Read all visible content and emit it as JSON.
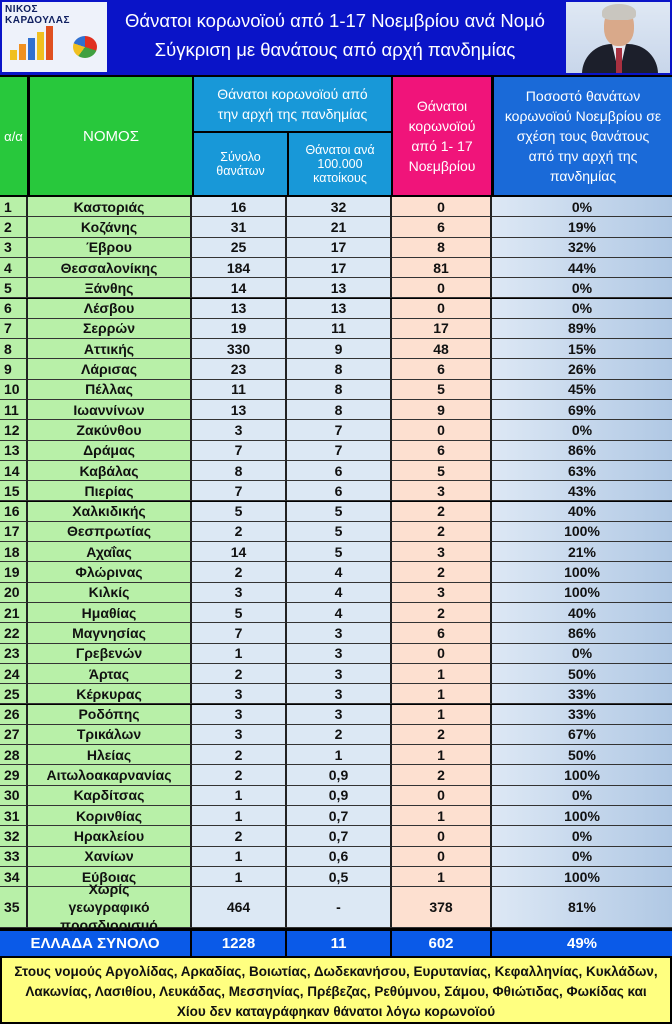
{
  "header": {
    "logo_text": "ΝΙΚΟΣ ΚΑΡΔΟΥΛΑΣ",
    "title_line1": "Θάνατοι κορωνοϊού από 1-17 Νοεμβρίου ανά Νομό",
    "title_line2": "Σύγκριση με θανάτους από αρχή πανδημίας"
  },
  "columns": {
    "aa": "α/α",
    "nomos": "ΝΟΜΟΣ",
    "group": "Θάνατοι κορωνοϊού από την αρχή της πανδημίας",
    "total": "Σύνολο θανάτων",
    "per100k": "Θάνατοι ανά 100.000 κατοίκους",
    "november": "Θάνατοι κορωνοϊού από 1- 17 Νοεμβρίου",
    "pct": "Ποσοστό θανάτων κορωνοϊού Νοεμβρίου σε σχέση τους θανάτους από την αρχή της πανδημίας"
  },
  "colors": {
    "banner": "#0a14c8",
    "green_header": "#28c83c",
    "blue_header": "#1898d8",
    "pink_header": "#f0147a",
    "total_row": "#0a5ae8",
    "footer": "#ffff80"
  },
  "rows": [
    [
      "1",
      "Καστοριάς",
      "16",
      "32",
      "0",
      "0%"
    ],
    [
      "2",
      "Κοζάνης",
      "31",
      "21",
      "6",
      "19%"
    ],
    [
      "3",
      "Έβρου",
      "25",
      "17",
      "8",
      "32%"
    ],
    [
      "4",
      "Θεσσαλονίκης",
      "184",
      "17",
      "81",
      "44%"
    ],
    [
      "5",
      "Ξάνθης",
      "14",
      "13",
      "0",
      "0%"
    ],
    [
      "6",
      "Λέσβου",
      "13",
      "13",
      "0",
      "0%"
    ],
    [
      "7",
      "Σερρών",
      "19",
      "11",
      "17",
      "89%"
    ],
    [
      "8",
      "Αττικής",
      "330",
      "9",
      "48",
      "15%"
    ],
    [
      "9",
      "Λάρισας",
      "23",
      "8",
      "6",
      "26%"
    ],
    [
      "10",
      "Πέλλας",
      "11",
      "8",
      "5",
      "45%"
    ],
    [
      "11",
      "Ιωαννίνων",
      "13",
      "8",
      "9",
      "69%"
    ],
    [
      "12",
      "Ζακύνθου",
      "3",
      "7",
      "0",
      "0%"
    ],
    [
      "13",
      "Δράμας",
      "7",
      "7",
      "6",
      "86%"
    ],
    [
      "14",
      "Καβάλας",
      "8",
      "6",
      "5",
      "63%"
    ],
    [
      "15",
      "Πιερίας",
      "7",
      "6",
      "3",
      "43%"
    ],
    [
      "16",
      "Χαλκιδικής",
      "5",
      "5",
      "2",
      "40%"
    ],
    [
      "17",
      "Θεσπρωτίας",
      "2",
      "5",
      "2",
      "100%"
    ],
    [
      "18",
      "Αχαΐας",
      "14",
      "5",
      "3",
      "21%"
    ],
    [
      "19",
      "Φλώρινας",
      "2",
      "4",
      "2",
      "100%"
    ],
    [
      "20",
      "Κιλκίς",
      "3",
      "4",
      "3",
      "100%"
    ],
    [
      "21",
      "Ημαθίας",
      "5",
      "4",
      "2",
      "40%"
    ],
    [
      "22",
      "Μαγνησίας",
      "7",
      "3",
      "6",
      "86%"
    ],
    [
      "23",
      "Γρεβενών",
      "1",
      "3",
      "0",
      "0%"
    ],
    [
      "24",
      "Άρτας",
      "2",
      "3",
      "1",
      "50%"
    ],
    [
      "25",
      "Κέρκυρας",
      "3",
      "3",
      "1",
      "33%"
    ],
    [
      "26",
      "Ροδόπης",
      "3",
      "3",
      "1",
      "33%"
    ],
    [
      "27",
      "Τρικάλων",
      "3",
      "2",
      "2",
      "67%"
    ],
    [
      "28",
      "Ηλείας",
      "2",
      "1",
      "1",
      "50%"
    ],
    [
      "29",
      "Αιτωλοακαρνανίας",
      "2",
      "0,9",
      "2",
      "100%"
    ],
    [
      "30",
      "Καρδίτσας",
      "1",
      "0,9",
      "0",
      "0%"
    ],
    [
      "31",
      "Κορινθίας",
      "1",
      "0,7",
      "1",
      "100%"
    ],
    [
      "32",
      "Ηρακλείου",
      "2",
      "0,7",
      "0",
      "0%"
    ],
    [
      "33",
      "Χανίων",
      "1",
      "0,6",
      "0",
      "0%"
    ],
    [
      "34",
      "Εύβοιας",
      "1",
      "0,5",
      "1",
      "100%"
    ],
    [
      "35",
      "Χωρίς γεωγραφικό προσδιορισμό",
      "464",
      "-",
      "378",
      "81%"
    ]
  ],
  "total": {
    "label": "ΕΛΛΑΔΑ ΣΥΝΟΛΟ",
    "total": "1228",
    "per100k": "11",
    "november": "602",
    "pct": "49%"
  },
  "footer": "Στους νομούς Αργολίδας, Αρκαδίας, Βοιωτίας, Δωδεκανήσου, Ευρυτανίας, Κεφαλληνίας, Κυκλάδων, Λακωνίας, Λασιθίου, Λευκάδας, Μεσσηνίας, Πρέβεζας, Ρεθύμνου, Σάμου, Φθιώτιδας, Φωκίδας και Χίου δεν καταγράφηκαν θάνατοι λόγω κορωνοϊού"
}
